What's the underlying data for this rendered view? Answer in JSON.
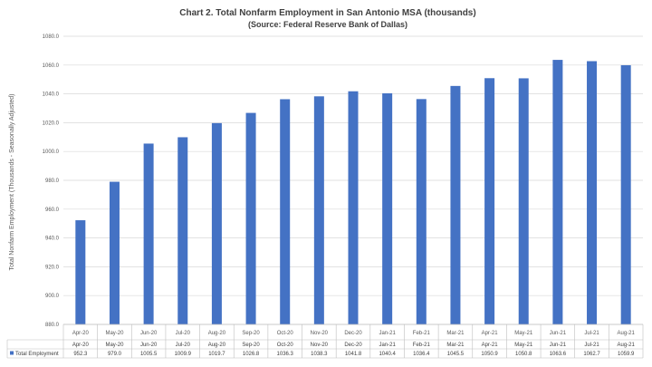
{
  "chart_data": {
    "type": "bar",
    "title": "Chart 2. Total Nonfarm Employment in San Antonio MSA (thousands)",
    "subtitle": "(Source: Federal Reserve Bank of Dallas)",
    "ylabel": "Total Nonfarm Employment (Thousands - Seasonally Adjusted)",
    "xlabel": "",
    "ylim": [
      880.0,
      1080.0
    ],
    "y_ticks": [
      "880.0",
      "900.0",
      "920.0",
      "940.0",
      "960.0",
      "980.0",
      "1000.0",
      "1020.0",
      "1040.0",
      "1060.0",
      "1080.0"
    ],
    "categories": [
      "Apr-20",
      "May-20",
      "Jun-20",
      "Jul-20",
      "Aug-20",
      "Sep-20",
      "Oct-20",
      "Nov-20",
      "Dec-20",
      "Jan-21",
      "Feb-21",
      "Mar-21",
      "Apr-21",
      "May-21",
      "Jun-21",
      "Jul-21",
      "Aug-21"
    ],
    "series": [
      {
        "name": "Total Employment",
        "color": "#4472c4",
        "values": [
          952.3,
          979.0,
          1005.5,
          1009.9,
          1019.7,
          1026.8,
          1036.3,
          1038.3,
          1041.8,
          1040.4,
          1036.4,
          1045.5,
          1050.9,
          1050.8,
          1063.6,
          1062.7,
          1059.9
        ],
        "value_labels": [
          "952.3",
          "979.0",
          "1005.5",
          "1009.9",
          "1019.7",
          "1026.8",
          "1036.3",
          "1038.3",
          "1041.8",
          "1040.4",
          "1036.4",
          "1045.5",
          "1050.9",
          "1050.8",
          "1063.6",
          "1062.7",
          "1059.9"
        ]
      }
    ],
    "grid": true,
    "legend": "data-table"
  }
}
